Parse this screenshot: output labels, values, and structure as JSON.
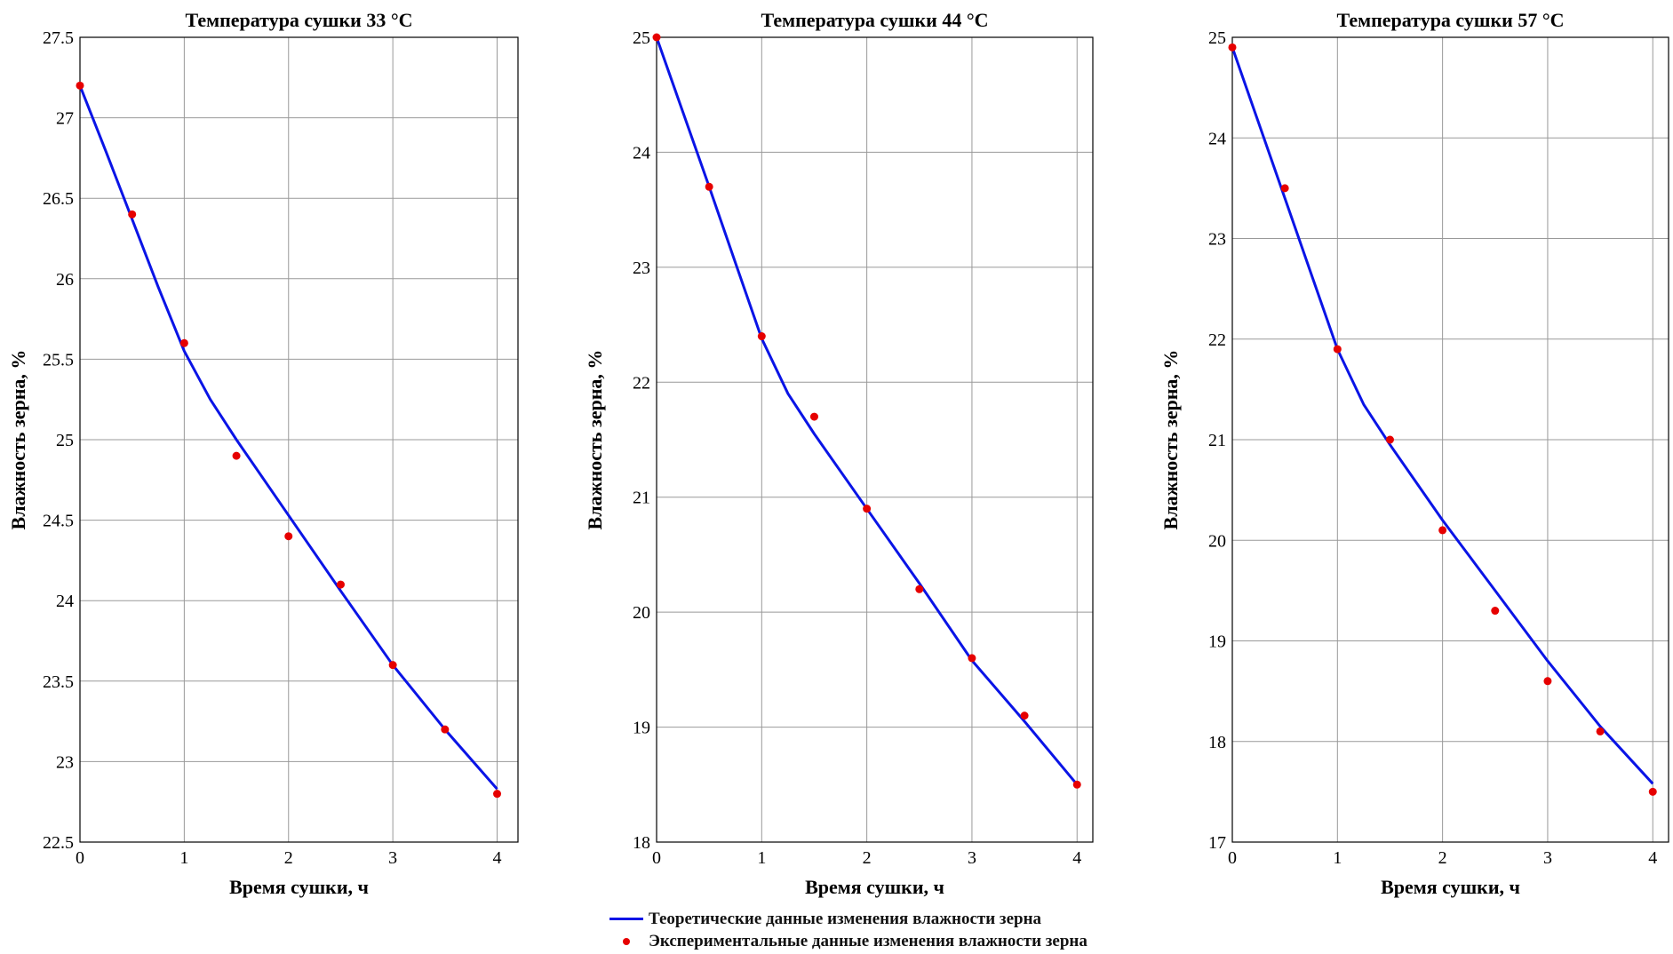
{
  "colors": {
    "theory": "#0a14e6",
    "experiment": "#e60000",
    "grid": "#999999",
    "axis": "#000000"
  },
  "legend": {
    "theory_label": "Теоретические данные изменения влажности зерна",
    "experiment_label": "Экспериментальные данные изменения влажности зерна"
  },
  "chart_data": [
    {
      "type": "line",
      "title": "Температура сушки 33 °С",
      "xlabel": "Время сушки, ч",
      "ylabel": "Влажность зерна, %",
      "xlim": [
        0,
        4.2
      ],
      "ylim": [
        22.5,
        27.5
      ],
      "xticks": [
        0,
        1,
        2,
        3,
        4
      ],
      "yticks": [
        22.5,
        23,
        23.5,
        24,
        24.5,
        25,
        25.5,
        26,
        26.5,
        27,
        27.5
      ],
      "grid": true,
      "series": [
        {
          "name": "Теоретические данные изменения влажности зерна",
          "kind": "line",
          "x": [
            0,
            0.25,
            0.5,
            0.75,
            1.0,
            1.25,
            1.5,
            2.0,
            2.5,
            3.0,
            3.5,
            4.0
          ],
          "y": [
            27.2,
            26.79,
            26.37,
            25.95,
            25.55,
            25.25,
            25.0,
            24.53,
            24.06,
            23.6,
            23.2,
            22.83
          ]
        },
        {
          "name": "Экспериментальные данные изменения влажности зерна",
          "kind": "scatter",
          "x": [
            0,
            0.5,
            1.0,
            1.5,
            2.0,
            2.5,
            3.0,
            3.5,
            4.0
          ],
          "y": [
            27.2,
            26.4,
            25.6,
            24.9,
            24.4,
            24.1,
            23.6,
            23.2,
            22.8
          ]
        }
      ]
    },
    {
      "type": "line",
      "title": "Температура сушки 44 °С",
      "xlabel": "Время сушки, ч",
      "ylabel": "Влажность зерна, %",
      "xlim": [
        0,
        4.15
      ],
      "ylim": [
        18,
        25
      ],
      "xticks": [
        0,
        1,
        2,
        3,
        4
      ],
      "yticks": [
        18,
        19,
        20,
        21,
        22,
        23,
        24,
        25
      ],
      "grid": true,
      "series": [
        {
          "name": "Теоретические данные изменения влажности зерна",
          "kind": "line",
          "x": [
            0,
            0.25,
            0.5,
            0.75,
            1.0,
            1.25,
            1.5,
            2.0,
            2.5,
            3.0,
            3.5,
            4.0
          ],
          "y": [
            25.0,
            24.35,
            23.7,
            23.04,
            22.38,
            21.9,
            21.55,
            20.9,
            20.25,
            19.58,
            19.05,
            18.5
          ]
        },
        {
          "name": "Экспериментальные данные изменения влажности зерна",
          "kind": "scatter",
          "x": [
            0,
            0.5,
            1.0,
            1.5,
            2.0,
            2.5,
            3.0,
            3.5,
            4.0
          ],
          "y": [
            25.0,
            23.7,
            22.4,
            21.7,
            20.9,
            20.2,
            19.6,
            19.1,
            18.5
          ]
        }
      ]
    },
    {
      "type": "line",
      "title": "Температура сушки 57 °С",
      "xlabel": "Время сушки, ч",
      "ylabel": "Влажность зерна, %",
      "xlim": [
        0,
        4.15
      ],
      "ylim": [
        17,
        25
      ],
      "xticks": [
        0,
        1,
        2,
        3,
        4
      ],
      "yticks": [
        17,
        18,
        19,
        20,
        21,
        22,
        23,
        24,
        25
      ],
      "grid": true,
      "series": [
        {
          "name": "Теоретические данные изменения влажности зерна",
          "kind": "line",
          "x": [
            0,
            0.25,
            0.5,
            0.75,
            1.0,
            1.25,
            1.5,
            2.0,
            2.5,
            3.0,
            3.5,
            4.0
          ],
          "y": [
            24.9,
            24.15,
            23.4,
            22.65,
            21.9,
            21.35,
            20.95,
            20.2,
            19.5,
            18.8,
            18.15,
            17.58
          ]
        },
        {
          "name": "Экспериментальные данные изменения влажности зерна",
          "kind": "scatter",
          "x": [
            0,
            0.5,
            1.0,
            1.5,
            2.0,
            2.5,
            3.0,
            3.5,
            4.0
          ],
          "y": [
            24.9,
            23.5,
            21.9,
            21.0,
            20.1,
            19.3,
            18.6,
            18.1,
            17.5
          ]
        }
      ]
    }
  ]
}
